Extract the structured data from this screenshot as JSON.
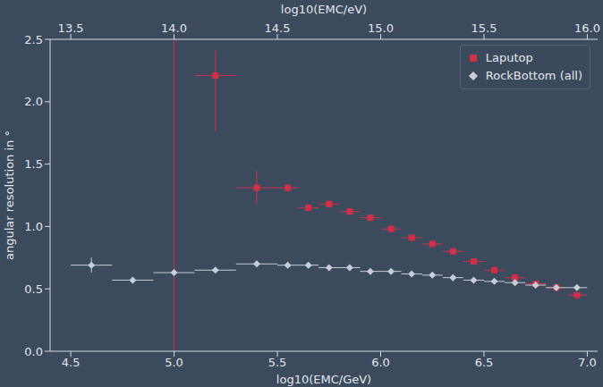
{
  "chart_data": {
    "type": "scatter",
    "x_label": "log10(EMC/GeV)",
    "x2_label": "log10(EMC/eV)",
    "y_label": "angular resolution in °",
    "xlim": [
      4.4,
      7.05
    ],
    "xticks": [
      4.5,
      {
        "value": 5.0,
        "label": "5.0"
      },
      5.5,
      {
        "value": 6.0,
        "label": "6.0"
      },
      6.5,
      {
        "value": 7.0,
        "label": "7.0"
      }
    ],
    "x2lim": [
      13.4,
      16.05
    ],
    "x2ticks": [
      13.5,
      {
        "value": 14.0,
        "label": "14.0"
      },
      14.5,
      {
        "value": 15.0,
        "label": "15.0"
      },
      15.5,
      {
        "value": 16.0,
        "label": "16.0"
      }
    ],
    "ylim": [
      0,
      2.5
    ],
    "yticks": [
      {
        "value": 0,
        "label": "0.0"
      },
      0.5,
      {
        "value": 1,
        "label": "1.0"
      },
      1.5,
      {
        "value": 2,
        "label": "2.0"
      },
      2.5
    ],
    "reference_line": {
      "x": 5.0,
      "color": "#d0314a"
    },
    "legend": "upper right",
    "series": [
      {
        "name": "Laputop",
        "color": "#d0314a",
        "marker": "square",
        "x": [
          5.2,
          5.4,
          5.55,
          5.65,
          5.75,
          5.85,
          5.95,
          6.05,
          6.15,
          6.25,
          6.35,
          6.45,
          6.55,
          6.65,
          6.75,
          6.85,
          6.95
        ],
        "values": [
          2.21,
          1.31,
          1.31,
          1.15,
          1.18,
          1.12,
          1.07,
          0.98,
          0.91,
          0.86,
          0.8,
          0.72,
          0.65,
          0.59,
          0.54,
          0.51,
          0.45
        ],
        "xerr": [
          0.1,
          0.1,
          0.05,
          0.05,
          0.05,
          0.05,
          0.05,
          0.05,
          0.05,
          0.05,
          0.05,
          0.05,
          0.05,
          0.05,
          0.05,
          0.05,
          0.05
        ],
        "yerr": [
          [
            0.45,
            0.2
          ],
          [
            0.13,
            0.14
          ],
          [
            0.03,
            0.03
          ],
          [
            0.02,
            0.02
          ],
          [
            0.02,
            0.02
          ],
          [
            0.02,
            0.02
          ],
          [
            0.02,
            0.02
          ],
          [
            0.02,
            0.02
          ],
          [
            0.02,
            0.02
          ],
          [
            0.02,
            0.02
          ],
          [
            0.02,
            0.02
          ],
          [
            0.02,
            0.02
          ],
          [
            0.02,
            0.02
          ],
          [
            0.02,
            0.02
          ],
          [
            0.02,
            0.02
          ],
          [
            0.02,
            0.02
          ],
          [
            0.02,
            0.02
          ]
        ]
      },
      {
        "name": "RockBottom (all)",
        "color": "#c9cdd8",
        "marker": "diamond",
        "x": [
          4.6,
          4.8,
          5.0,
          5.2,
          5.4,
          5.55,
          5.65,
          5.75,
          5.85,
          5.95,
          6.05,
          6.15,
          6.25,
          6.35,
          6.45,
          6.55,
          6.65,
          6.75,
          6.85,
          6.95
        ],
        "values": [
          0.69,
          0.57,
          0.63,
          0.65,
          0.7,
          0.69,
          0.69,
          0.67,
          0.67,
          0.64,
          0.64,
          0.62,
          0.61,
          0.59,
          0.57,
          0.56,
          0.55,
          0.53,
          0.51,
          0.51
        ],
        "xerr": [
          0.1,
          0.1,
          0.1,
          0.1,
          0.1,
          0.05,
          0.05,
          0.05,
          0.05,
          0.05,
          0.05,
          0.05,
          0.05,
          0.05,
          0.05,
          0.05,
          0.05,
          0.05,
          0.05,
          0.05
        ],
        "yerr": [
          [
            0.06,
            0.06
          ],
          [
            0.02,
            0.02
          ],
          [
            0.02,
            0.02
          ],
          [
            0.02,
            0.02
          ],
          [
            0.02,
            0.02
          ],
          [
            0.02,
            0.02
          ],
          [
            0.02,
            0.02
          ],
          [
            0.02,
            0.02
          ],
          [
            0.02,
            0.02
          ],
          [
            0.02,
            0.02
          ],
          [
            0.02,
            0.02
          ],
          [
            0.02,
            0.02
          ],
          [
            0.02,
            0.02
          ],
          [
            0.02,
            0.02
          ],
          [
            0.02,
            0.02
          ],
          [
            0.02,
            0.02
          ],
          [
            0.02,
            0.02
          ],
          [
            0.02,
            0.02
          ],
          [
            0.02,
            0.02
          ],
          [
            0.02,
            0.02
          ]
        ]
      }
    ]
  }
}
